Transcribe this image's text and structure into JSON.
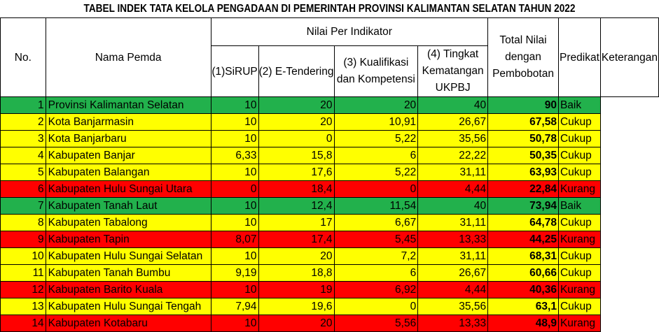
{
  "title": "TABEL INDEK TATA KELOLA PENGADAAN DI PEMERINTAH PROVINSI KALIMANTAN SELATAN TAHUN 2022",
  "headers": {
    "no": "No.",
    "nama": "Nama Pemda",
    "nilai_group": "Nilai Per Indikator",
    "ind1": "(1)SiRUP",
    "ind2": "(2) E-Tendering",
    "ind3": "(3) Kualifikasi dan Kompetensi",
    "ind4": "(4) Tingkat Kematangan UKPBJ",
    "total": "Total Nilai dengan Pembobotan",
    "predikat": "Predikat",
    "keterangan": "Keterangan"
  },
  "colors": {
    "baik": "#22b14c",
    "cukup": "#ffff00",
    "kurang": "#ff0000"
  },
  "rows": [
    {
      "no": "1",
      "nama": "Provinsi Kalimantan Selatan",
      "i1": "10",
      "i2": "20",
      "i3": "20",
      "i4": "40",
      "total": "90",
      "predikat": "Baik",
      "color": "green"
    },
    {
      "no": "2",
      "nama": "Kota Banjarmasin",
      "i1": "10",
      "i2": "20",
      "i3": "10,91",
      "i4": "26,67",
      "total": "67,58",
      "predikat": "Cukup",
      "color": "yellow"
    },
    {
      "no": "3",
      "nama": "Kota Banjarbaru",
      "i1": "10",
      "i2": "0",
      "i3": "5,22",
      "i4": "35,56",
      "total": "50,78",
      "predikat": "Cukup",
      "color": "yellow"
    },
    {
      "no": "4",
      "nama": "Kabupaten Banjar",
      "i1": "6,33",
      "i2": "15,8",
      "i3": "6",
      "i4": "22,22",
      "total": "50,35",
      "predikat": "Cukup",
      "color": "yellow"
    },
    {
      "no": "5",
      "nama": "Kabupaten Balangan",
      "i1": "10",
      "i2": "17,6",
      "i3": "5,22",
      "i4": "31,11",
      "total": "63,93",
      "predikat": "Cukup",
      "color": "yellow"
    },
    {
      "no": "6",
      "nama": "Kabupaten Hulu Sungai Utara",
      "i1": "0",
      "i2": "18,4",
      "i3": "0",
      "i4": "4,44",
      "total": "22,84",
      "predikat": "Kurang",
      "color": "red"
    },
    {
      "no": "7",
      "nama": "Kabupaten Tanah Laut",
      "i1": "10",
      "i2": "12,4",
      "i3": "11,54",
      "i4": "40",
      "total": "73,94",
      "predikat": "Baik",
      "color": "green"
    },
    {
      "no": "8",
      "nama": "Kabupaten Tabalong",
      "i1": "10",
      "i2": "17",
      "i3": "6,67",
      "i4": "31,11",
      "total": "64,78",
      "predikat": "Cukup",
      "color": "yellow"
    },
    {
      "no": "9",
      "nama": "Kabupaten Tapin",
      "i1": "8,07",
      "i2": "17,4",
      "i3": "5,45",
      "i4": "13,33",
      "total": "44,25",
      "predikat": "Kurang",
      "color": "red"
    },
    {
      "no": "10",
      "nama": "Kabupaten Hulu Sungai Selatan",
      "i1": "10",
      "i2": "20",
      "i3": "7,2",
      "i4": "31,11",
      "total": "68,31",
      "predikat": "Cukup",
      "color": "yellow"
    },
    {
      "no": "11",
      "nama": "Kabupaten Tanah Bumbu",
      "i1": "9,19",
      "i2": "18,8",
      "i3": "6",
      "i4": "26,67",
      "total": "60,66",
      "predikat": "Cukup",
      "color": "yellow"
    },
    {
      "no": "12",
      "nama": "Kabupaten Barito Kuala",
      "i1": "10",
      "i2": "19",
      "i3": "6,92",
      "i4": "4,44",
      "total": "40,36",
      "predikat": "Kurang",
      "color": "red"
    },
    {
      "no": "13",
      "nama": "Kabupaten Hulu Sungai Tengah",
      "i1": "7,94",
      "i2": "19,6",
      "i3": "0",
      "i4": "35,56",
      "total": "63,1",
      "predikat": "Cukup",
      "color": "yellow"
    },
    {
      "no": "14",
      "nama": "Kabupaten Kotabaru",
      "i1": "10",
      "i2": "20",
      "i3": "5,56",
      "i4": "13,33",
      "total": "48,9",
      "predikat": "Kurang",
      "color": "red"
    }
  ]
}
